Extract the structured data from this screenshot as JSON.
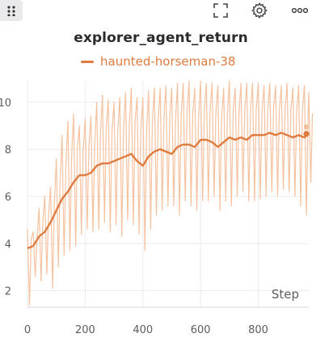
{
  "toolbar": {
    "drag_icon": "drag-handle-icon",
    "fullscreen_icon": "fullscreen-icon",
    "settings_icon": "gear-icon",
    "more_icon": "more-options-icon"
  },
  "colors": {
    "series_line": "#e07b3f",
    "series_raw": "#f4bf9b",
    "grid": "#ececef",
    "title": "#2b2b2b",
    "tick": "#5c5c5c"
  },
  "chart_data": {
    "type": "line",
    "title": "explorer_agent_return",
    "xlabel": "Step",
    "ylabel": "",
    "xlim": [
      0,
      975
    ],
    "ylim": [
      1.3,
      10.9
    ],
    "x_ticks": [
      0,
      200,
      400,
      600,
      800
    ],
    "y_ticks": [
      2,
      4,
      6,
      8,
      10
    ],
    "grid": true,
    "legend_position": "top",
    "series": [
      {
        "name": "haunted-horseman-38",
        "smoothed": {
          "x": [
            0,
            20,
            40,
            60,
            80,
            100,
            120,
            140,
            160,
            180,
            200,
            220,
            240,
            260,
            280,
            300,
            320,
            340,
            360,
            380,
            400,
            420,
            440,
            460,
            480,
            500,
            520,
            540,
            560,
            580,
            600,
            620,
            640,
            660,
            680,
            700,
            720,
            740,
            760,
            780,
            800,
            820,
            840,
            860,
            880,
            900,
            920,
            940,
            960,
            975
          ],
          "y": [
            3.8,
            3.9,
            4.3,
            4.5,
            4.9,
            5.4,
            5.9,
            6.2,
            6.6,
            6.9,
            6.9,
            7.0,
            7.3,
            7.4,
            7.4,
            7.5,
            7.6,
            7.7,
            7.8,
            7.5,
            7.3,
            7.7,
            7.9,
            8.0,
            7.9,
            7.8,
            8.1,
            8.2,
            8.2,
            8.1,
            8.4,
            8.4,
            8.3,
            8.1,
            8.3,
            8.5,
            8.4,
            8.5,
            8.4,
            8.6,
            8.6,
            8.6,
            8.7,
            8.6,
            8.7,
            8.6,
            8.5,
            8.6,
            8.5,
            8.65
          ]
        },
        "raw_upper": [
          4.6,
          4.5,
          5.5,
          6.0,
          6.4,
          7.6,
          8.6,
          9.2,
          9.5,
          9.0,
          9.3,
          9.4,
          10.0,
          10.3,
          10.1,
          10.0,
          10.2,
          10.4,
          10.6,
          10.2,
          10.2,
          10.5,
          10.6,
          10.6,
          10.7,
          10.6,
          10.8,
          10.8,
          10.9,
          10.6,
          10.9,
          10.8,
          10.8,
          10.7,
          10.6,
          10.9,
          10.6,
          10.8,
          10.8,
          10.8,
          10.8,
          10.7,
          10.8,
          10.7,
          10.7,
          10.8,
          10.6,
          10.7,
          10.7,
          10.4
        ],
        "raw_lower": [
          1.4,
          2.6,
          2.4,
          2.7,
          2.1,
          3.0,
          3.5,
          3.7,
          3.9,
          4.4,
          4.6,
          4.5,
          4.6,
          4.9,
          4.5,
          4.8,
          4.3,
          5.0,
          4.8,
          4.4,
          3.7,
          4.6,
          5.2,
          5.4,
          5.6,
          5.6,
          5.2,
          5.8,
          5.6,
          5.4,
          5.8,
          5.8,
          6.0,
          5.4,
          5.8,
          5.6,
          6.0,
          6.2,
          5.8,
          5.8,
          5.9,
          6.0,
          6.2,
          6.0,
          6.3,
          6.2,
          6.0,
          5.6,
          5.2,
          6.6
        ],
        "last_values": [
          8.65,
          8.95
        ]
      }
    ]
  }
}
